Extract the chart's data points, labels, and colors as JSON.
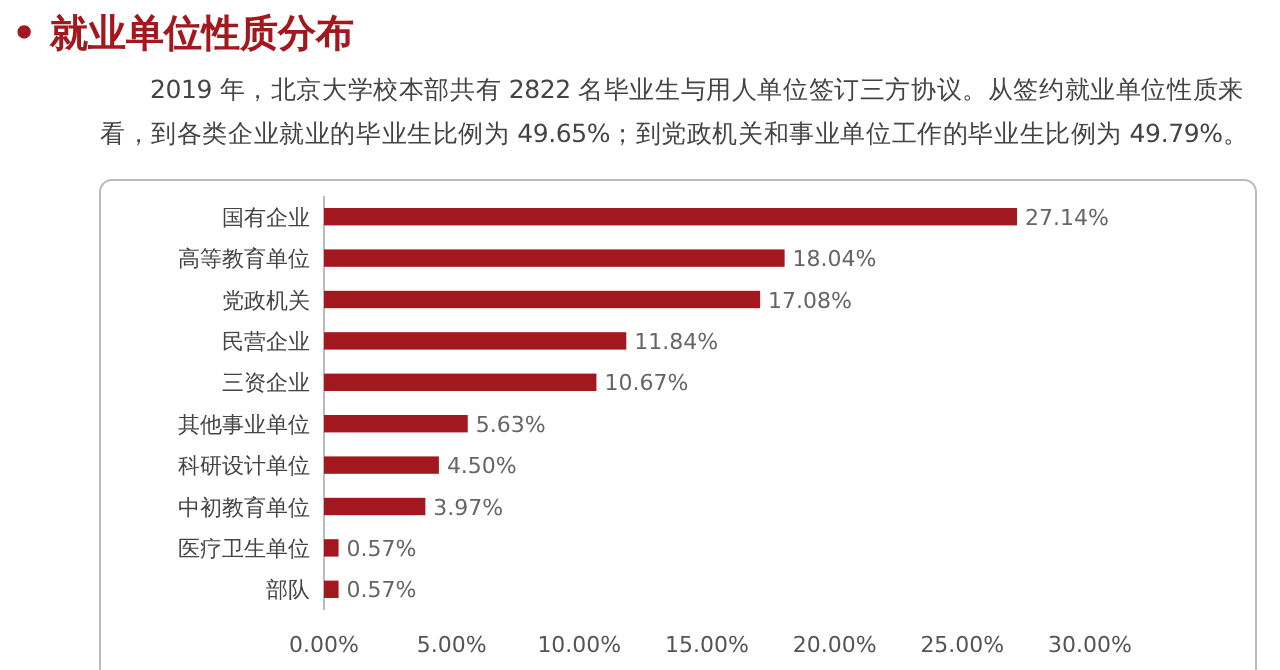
{
  "chart_data": {
    "type": "bar",
    "orientation": "horizontal",
    "title": "• 就业单位性质分布",
    "subtitle": "2019 年，北京大学校本部共有 2822 名毕业生与用人单位签订三方协议。从签约就业单位性质来看，到各类企业就业的毕业生比例为 49.65%；到党政机关和事业单位工作的毕业生比例为 49.79%。",
    "categories": [
      "国有企业",
      "高等教育单位",
      "党政机关",
      "民营企业",
      "三资企业",
      "其他事业单位",
      "科研设计单位",
      "中初教育单位",
      "医疗卫生单位",
      "部队"
    ],
    "values": [
      27.14,
      18.04,
      17.08,
      11.84,
      10.67,
      5.63,
      4.5,
      3.97,
      0.57,
      0.57
    ],
    "value_labels": [
      "27.14%",
      "18.04%",
      "17.08%",
      "11.84%",
      "10.67%",
      "5.63%",
      "4.50%",
      "3.97%",
      "0.57%",
      "0.57%"
    ],
    "color": "#a3181f",
    "xlim": [
      0,
      30
    ],
    "xticks": [
      {
        "value": 0,
        "label": "0.00%"
      },
      {
        "value": 5,
        "label": "5.00%"
      },
      {
        "value": 10,
        "label": "10.00%"
      },
      {
        "value": 15,
        "label": "15.00%"
      },
      {
        "value": 20,
        "label": "20.00%"
      },
      {
        "value": 25,
        "label": "25.00%"
      },
      {
        "value": 30,
        "label": "30.00%"
      }
    ]
  }
}
